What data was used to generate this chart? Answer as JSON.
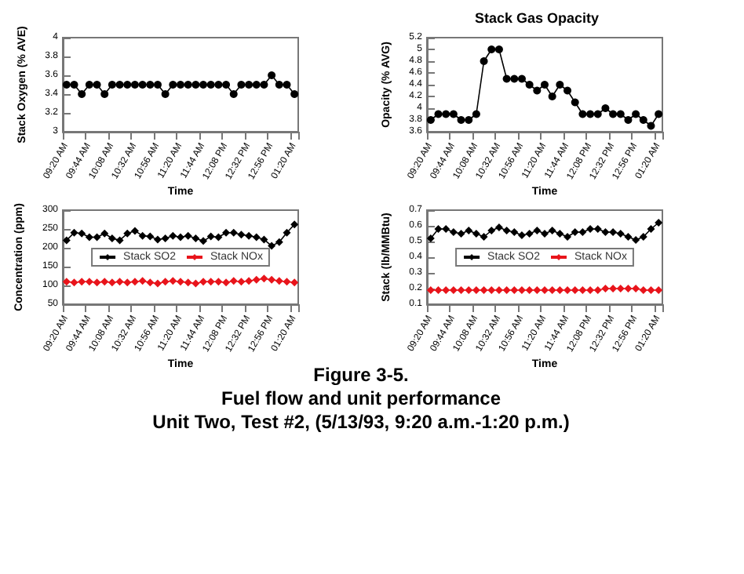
{
  "chart_data": [
    {
      "type": "line",
      "ylabel": "Stack Oxygen (% AVE)",
      "xlabel": "Time",
      "categories": [
        "09:20 AM",
        null,
        null,
        "09:44 AM",
        null,
        null,
        "10:08 AM",
        null,
        null,
        "10:32 AM",
        null,
        null,
        "10:56 AM",
        null,
        null,
        "11:20 AM",
        null,
        null,
        "11:44 AM",
        null,
        null,
        "12:08 PM",
        null,
        null,
        "12:32 PM",
        null,
        null,
        "12:56 PM",
        null,
        null,
        "01:20 AM"
      ],
      "series": [
        {
          "color": "#000000",
          "values": [
            3.5,
            3.5,
            3.4,
            3.5,
            3.5,
            3.4,
            3.5,
            3.5,
            3.5,
            3.5,
            3.5,
            3.5,
            3.5,
            3.4,
            3.5,
            3.5,
            3.5,
            3.5,
            3.5,
            3.5,
            3.5,
            3.5,
            3.4,
            3.5,
            3.5,
            3.5,
            3.5,
            3.6,
            3.5,
            3.5,
            3.4
          ]
        }
      ],
      "ylim": [
        3,
        4
      ],
      "yticks": [
        3,
        3.2,
        3.4,
        3.6,
        3.8,
        4
      ],
      "marker": "circle",
      "grid": false,
      "legend": false
    },
    {
      "type": "line",
      "title": "Stack Gas Opacity",
      "ylabel": "Opacity (% AVG)",
      "xlabel": "Time",
      "categories": [
        "09:20 AM",
        null,
        null,
        "09:44 AM",
        null,
        null,
        "10:08 AM",
        null,
        null,
        "10:32 AM",
        null,
        null,
        "10:56 AM",
        null,
        null,
        "11:20 AM",
        null,
        null,
        "11:44 AM",
        null,
        null,
        "12:08 PM",
        null,
        null,
        "12:32 PM",
        null,
        null,
        "12:56 PM",
        null,
        null,
        "01:20 AM"
      ],
      "series": [
        {
          "color": "#000000",
          "values": [
            3.8,
            3.9,
            3.9,
            3.9,
            3.8,
            3.8,
            3.9,
            4.8,
            5.0,
            5.0,
            4.5,
            4.5,
            4.5,
            4.4,
            4.3,
            4.4,
            4.2,
            4.4,
            4.3,
            4.1,
            3.9,
            3.9,
            3.9,
            4.0,
            3.9,
            3.9,
            3.8,
            3.9,
            3.8,
            3.7,
            3.9
          ]
        }
      ],
      "ylim": [
        3.6,
        5.2
      ],
      "yticks": [
        3.6,
        3.8,
        4,
        4.2,
        4.4,
        4.6,
        4.8,
        5,
        5.2
      ],
      "marker": "circle",
      "grid": false,
      "legend": false
    },
    {
      "type": "line",
      "ylabel": "Concentration (ppm)",
      "xlabel": "Time",
      "categories": [
        "09:20 AM",
        null,
        null,
        "09:44 AM",
        null,
        null,
        "10:08 AM",
        null,
        null,
        "10:32 AM",
        null,
        null,
        "10:56 AM",
        null,
        null,
        "11:20 AM",
        null,
        null,
        "11:44 AM",
        null,
        null,
        "12:08 PM",
        null,
        null,
        "12:32 PM",
        null,
        null,
        "12:56 PM",
        null,
        null,
        "01:20 AM"
      ],
      "series": [
        {
          "name": "Stack SO2",
          "color": "#000000",
          "values": [
            220,
            240,
            238,
            228,
            228,
            238,
            225,
            220,
            238,
            245,
            232,
            230,
            222,
            225,
            232,
            228,
            232,
            225,
            218,
            230,
            228,
            240,
            240,
            235,
            232,
            228,
            222,
            205,
            215,
            240,
            262
          ]
        },
        {
          "name": "Stack NOx",
          "color": "#e8141b",
          "values": [
            110,
            108,
            110,
            110,
            108,
            110,
            108,
            110,
            108,
            110,
            112,
            108,
            105,
            110,
            112,
            110,
            108,
            105,
            110,
            110,
            110,
            108,
            112,
            110,
            112,
            115,
            118,
            115,
            112,
            110,
            108
          ]
        }
      ],
      "ylim": [
        50,
        300
      ],
      "yticks": [
        50,
        100,
        150,
        200,
        250,
        300
      ],
      "marker": "diamond",
      "grid": false,
      "legend": "center",
      "annotations": [
        "Figure 3-5.",
        "Fuel flow and unit performance",
        "Unit Two, Test #2, (5/13/93, 9:20 a.m.-1:20 p.m.)"
      ]
    },
    {
      "type": "line",
      "ylabel": "Stack (lb/MMBtu)",
      "xlabel": "Time",
      "categories": [
        "09:20 AM",
        null,
        null,
        "09:44 AM",
        null,
        null,
        "10:08 AM",
        null,
        null,
        "10:32 AM",
        null,
        null,
        "10:56 AM",
        null,
        null,
        "11:20 AM",
        null,
        null,
        "11:44 AM",
        null,
        null,
        "12:08 PM",
        null,
        null,
        "12:32 PM",
        null,
        null,
        "12:56 PM",
        null,
        null,
        "01:20 AM"
      ],
      "series": [
        {
          "name": "Stack SO2",
          "color": "#000000",
          "values": [
            0.52,
            0.58,
            0.58,
            0.56,
            0.55,
            0.57,
            0.55,
            0.53,
            0.57,
            0.59,
            0.57,
            0.56,
            0.54,
            0.55,
            0.57,
            0.55,
            0.57,
            0.55,
            0.53,
            0.56,
            0.56,
            0.58,
            0.58,
            0.56,
            0.56,
            0.55,
            0.53,
            0.51,
            0.53,
            0.58,
            0.62
          ]
        },
        {
          "name": "Stack NOx",
          "color": "#e8141b",
          "values": [
            0.19,
            0.19,
            0.19,
            0.19,
            0.19,
            0.19,
            0.19,
            0.19,
            0.19,
            0.19,
            0.19,
            0.19,
            0.19,
            0.19,
            0.19,
            0.19,
            0.19,
            0.19,
            0.19,
            0.19,
            0.19,
            0.19,
            0.19,
            0.2,
            0.2,
            0.2,
            0.2,
            0.2,
            0.19,
            0.19,
            0.19
          ]
        }
      ],
      "ylim": [
        0.1,
        0.7
      ],
      "yticks": [
        0.1,
        0.2,
        0.3,
        0.4,
        0.5,
        0.6,
        0.7
      ],
      "marker": "diamond",
      "grid": false,
      "legend": "center"
    }
  ]
}
